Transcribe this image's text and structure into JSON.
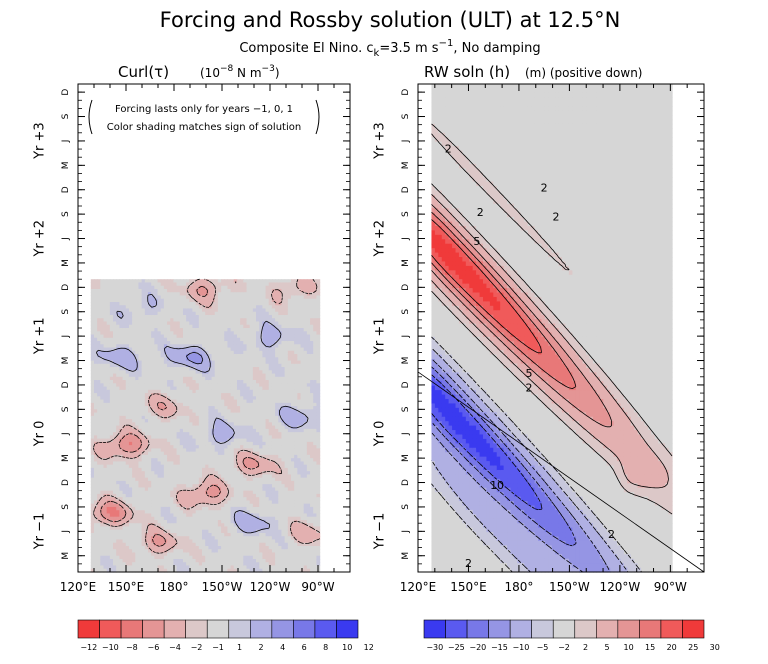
{
  "title": "Forcing and Rossby solution (ULT) at 12.5°N",
  "subtitle_pre": "Composite El Nino. c",
  "subtitle_sub": "k",
  "subtitle_mid": "=3.5 m s",
  "subtitle_sup": "−1",
  "subtitle_post": ", No damping",
  "chart_data": [
    {
      "type": "heatmap",
      "panel": "left",
      "title_main": "Curl(τ)",
      "title_units_pre": "(10",
      "title_units_sup1": "−8",
      "title_units_mid": " N m",
      "title_units_sup2": "−3",
      "title_units_post": ")",
      "annotation_lines": [
        "Forcing lasts only for years −1, 0, 1",
        "Color shading matches sign of solution"
      ],
      "x_ticks": [
        "120°E",
        "150°E",
        "180°",
        "150°W",
        "120°W",
        "90°W"
      ],
      "x_tick_lons": [
        120,
        150,
        180,
        210,
        240,
        270
      ],
      "xlim_lon": [
        120,
        290
      ],
      "data_lon_range": [
        128,
        271
      ],
      "month_ticks": [
        "M",
        "J",
        "S",
        "D",
        "M",
        "J",
        "S",
        "D",
        "M",
        "J",
        "S",
        "D",
        "M",
        "J",
        "S",
        "D",
        "M",
        "J",
        "S",
        "D"
      ],
      "month_tick_times": [
        0.1667,
        0.4167,
        0.6667,
        0.9167,
        1.1667,
        1.4167,
        1.6667,
        1.9167,
        2.1667,
        2.4167,
        2.6667,
        2.9167,
        3.1667,
        3.4167,
        3.6667,
        3.9167,
        4.1667,
        4.4167,
        4.6667,
        4.9167
      ],
      "year_labels": [
        "Yr −1",
        "Yr 0",
        "Yr +1",
        "Yr +2",
        "Yr +3"
      ],
      "year_label_times": [
        0.42,
        1.42,
        2.42,
        3.42,
        4.42
      ],
      "ylim_time": [
        0,
        5
      ],
      "data_time_range": [
        0,
        3.0
      ],
      "blobs": [
        {
          "lon": 140,
          "t": 0.6,
          "v": -6
        },
        {
          "lon": 170,
          "t": 0.3,
          "v": -4
        },
        {
          "lon": 200,
          "t": 0.8,
          "v": -5
        },
        {
          "lon": 150,
          "t": 1.3,
          "v": -6
        },
        {
          "lon": 230,
          "t": 1.1,
          "v": -4
        },
        {
          "lon": 175,
          "t": 1.7,
          "v": -3
        },
        {
          "lon": 210,
          "t": 1.4,
          "v": 3
        },
        {
          "lon": 260,
          "t": 1.6,
          "v": 3
        },
        {
          "lon": 145,
          "t": 2.2,
          "v": 3
        },
        {
          "lon": 190,
          "t": 2.2,
          "v": 4
        },
        {
          "lon": 240,
          "t": 2.4,
          "v": 3
        },
        {
          "lon": 200,
          "t": 2.9,
          "v": -4
        },
        {
          "lon": 255,
          "t": 2.9,
          "v": -3
        },
        {
          "lon": 160,
          "t": 2.7,
          "v": 2
        },
        {
          "lon": 230,
          "t": 0.5,
          "v": 3
        },
        {
          "lon": 265,
          "t": 0.4,
          "v": -3
        }
      ]
    },
    {
      "type": "heatmap",
      "panel": "right",
      "title_main": "RW soln (h)",
      "title_units": "(m) (positive down)",
      "x_ticks": [
        "120°E",
        "150°E",
        "180°",
        "150°W",
        "120°W",
        "90°W"
      ],
      "x_tick_lons": [
        120,
        150,
        180,
        210,
        240,
        270
      ],
      "xlim_lon": [
        120,
        290
      ],
      "data_lon_range": [
        128,
        271
      ],
      "month_ticks": [
        "M",
        "J",
        "S",
        "D",
        "M",
        "J",
        "S",
        "D",
        "M",
        "J",
        "S",
        "D",
        "M",
        "J",
        "S",
        "D",
        "M",
        "J",
        "S",
        "D"
      ],
      "month_tick_times": [
        0.1667,
        0.4167,
        0.6667,
        0.9167,
        1.1667,
        1.4167,
        1.6667,
        1.9167,
        2.1667,
        2.4167,
        2.6667,
        2.9167,
        3.1667,
        3.4167,
        3.6667,
        3.9167,
        4.1667,
        4.4167,
        4.6667,
        4.9167
      ],
      "year_labels": [
        "Yr −1",
        "Yr 0",
        "Yr +1",
        "Yr +2",
        "Yr +3"
      ],
      "year_label_times": [
        0.42,
        1.42,
        2.42,
        3.42,
        4.42
      ],
      "ylim_time": [
        0,
        5
      ],
      "data_time_range": [
        0,
        5
      ],
      "contour_labels": [
        {
          "text": "2",
          "lon": 138,
          "t": 4.3
        },
        {
          "text": "2",
          "lon": 195,
          "t": 3.9
        },
        {
          "text": "2",
          "lon": 202,
          "t": 3.6
        },
        {
          "text": "2",
          "lon": 157,
          "t": 3.65
        },
        {
          "text": "5",
          "lon": 155,
          "t": 3.35
        },
        {
          "text": "5",
          "lon": 186,
          "t": 2.0
        },
        {
          "text": "2",
          "lon": 186,
          "t": 1.85
        },
        {
          "text": "10",
          "lon": 167,
          "t": 0.85
        },
        {
          "text": "2",
          "lon": 235,
          "t": 0.35
        },
        {
          "text": "2",
          "lon": 150,
          "t": 0.05
        }
      ],
      "features": [
        {
          "lon": 138,
          "t": 3.25,
          "amp": 28,
          "slope": -0.0178,
          "sigma_lon": 30,
          "sigma_t": 0.34
        },
        {
          "lon": 138,
          "t": 1.65,
          "amp": -28,
          "slope": -0.0178,
          "sigma_lon": 30,
          "sigma_t": 0.36
        },
        {
          "lon": 160,
          "t": 0.6,
          "amp": -6,
          "slope": -0.0178,
          "sigma_lon": 35,
          "sigma_t": 0.3
        },
        {
          "lon": 150,
          "t": 4.15,
          "amp": 3,
          "slope": -0.0178,
          "sigma_lon": 30,
          "sigma_t": 0.12
        },
        {
          "lon": 248,
          "t": 1.0,
          "amp": 4,
          "slope": 0,
          "sigma_lon": 5,
          "sigma_t": 0.18
        }
      ],
      "characteristic_line": {
        "lon0": 120,
        "t0": 2.05,
        "lon1": 290,
        "t1": 0
      }
    }
  ],
  "colorbars": [
    {
      "name": "curl-colorbar",
      "labels": [
        "−12",
        "−10",
        "−8",
        "−6",
        "−4",
        "−2",
        "−1",
        "1",
        "2",
        "4",
        "6",
        "8",
        "10",
        "12"
      ],
      "colors": [
        "#f03a3a",
        "#f05a5a",
        "#e87878",
        "#e49595",
        "#e3b0b0",
        "#dcc8c8",
        "#d6d6d6",
        "#c8c8dc",
        "#b0b0e3",
        "#9595e4",
        "#7878e8",
        "#5a5af0",
        "#3a3af0"
      ]
    },
    {
      "name": "rw-colorbar",
      "labels": [
        "−30",
        "−25",
        "−20",
        "−15",
        "−10",
        "−5",
        "−2",
        "2",
        "5",
        "10",
        "15",
        "20",
        "25",
        "30"
      ],
      "colors": [
        "#3a3af0",
        "#5a5af0",
        "#7878e8",
        "#9595e4",
        "#b0b0e3",
        "#c8c8dc",
        "#d6d6d6",
        "#dcc8c8",
        "#e3b0b0",
        "#e49595",
        "#e87878",
        "#f05a5a",
        "#f03a3a"
      ]
    }
  ]
}
